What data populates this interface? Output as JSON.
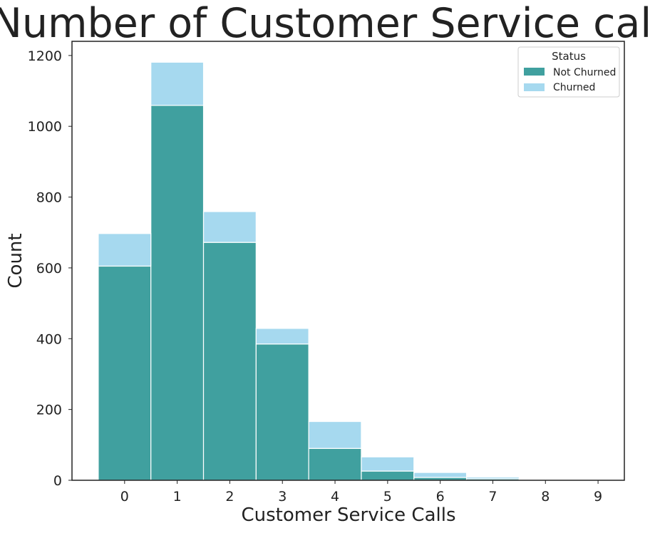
{
  "chart_data": {
    "type": "bar",
    "stacked": true,
    "title": "Number of Customer Service calls",
    "xlabel": "Customer Service Calls",
    "ylabel": "Count",
    "categories": [
      "0",
      "1",
      "2",
      "3",
      "4",
      "5",
      "6",
      "7",
      "8",
      "9"
    ],
    "ylim": [
      0,
      1240
    ],
    "yticks": [
      0,
      200,
      400,
      600,
      800,
      1000,
      1200
    ],
    "series": [
      {
        "name": "Not Churned",
        "color": "#40a09f",
        "values": [
          605,
          1059,
          672,
          385,
          90,
          26,
          8,
          4,
          1,
          0
        ]
      },
      {
        "name": "Churned",
        "color": "#a6d9ef",
        "values": [
          92,
          122,
          87,
          44,
          76,
          40,
          14,
          5,
          1,
          2
        ]
      }
    ],
    "legend": {
      "title": "Status",
      "position": "top-right"
    },
    "grid": false
  }
}
